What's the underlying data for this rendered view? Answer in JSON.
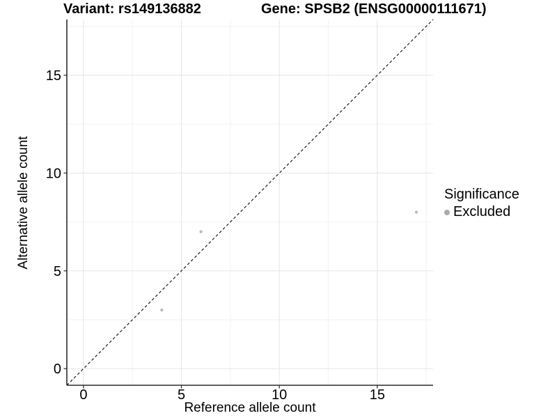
{
  "chart_data": {
    "type": "scatter",
    "title_left": "Variant: rs149136882",
    "title_right": "Gene: SPSB2 (ENSG00000111671)",
    "xlabel": "Reference allele count",
    "ylabel": "Alternative allele count",
    "xlim": [
      -0.85,
      17.85
    ],
    "ylim": [
      -0.85,
      17.85
    ],
    "major_ticks": [
      0,
      5,
      10,
      15
    ],
    "tick_labels": [
      "0",
      "5",
      "10",
      "15"
    ],
    "minor_gridlines": [
      2.5,
      7.5,
      12.5,
      17.5
    ],
    "grid": true,
    "series": [
      {
        "name": "Excluded",
        "color": "#bdbdbd",
        "points": [
          {
            "x": 4,
            "y": 3
          },
          {
            "x": 6,
            "y": 7
          },
          {
            "x": 17,
            "y": 8
          }
        ]
      }
    ],
    "identity_line": {
      "style": "dashed",
      "slope": 1,
      "intercept": 0,
      "color": "#1a1a1a"
    },
    "legend": {
      "title": "Significance",
      "position": "right",
      "entries": [
        {
          "label": "Excluded",
          "marker": "circle",
          "color": "#ababab"
        }
      ]
    },
    "colors": {
      "background": "#ffffff",
      "major_grid": "#e5e5e5",
      "minor_grid": "#f2f2f2",
      "axis_line": "#2b2b2b",
      "tick_mark": "#333333",
      "text": "#000000"
    }
  }
}
